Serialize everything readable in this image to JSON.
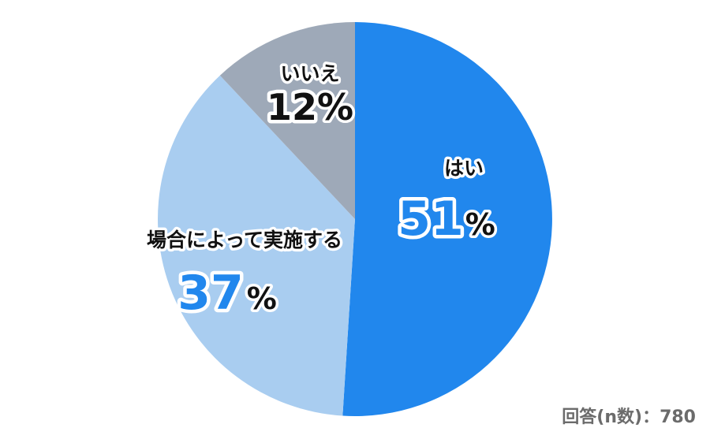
{
  "chart_data": {
    "type": "pie",
    "slices": [
      {
        "label": "はい",
        "value": 51,
        "display": "51",
        "color": "#2187ed",
        "label_color": "#111111",
        "value_color": "#2187ed"
      },
      {
        "label": "場合によって実施する",
        "value": 37,
        "display": "37",
        "color": "#a9cdf0",
        "label_color": "#111111",
        "value_color": "#2187ed"
      },
      {
        "label": "いいえ",
        "value": 12,
        "display": "12",
        "color": "#9ea9b8",
        "label_color": "#111111",
        "value_color": "#111111"
      }
    ],
    "percent_sign": "%",
    "start": "12 o'clock",
    "direction": "clockwise"
  },
  "footnote": "回答(n数)：780"
}
